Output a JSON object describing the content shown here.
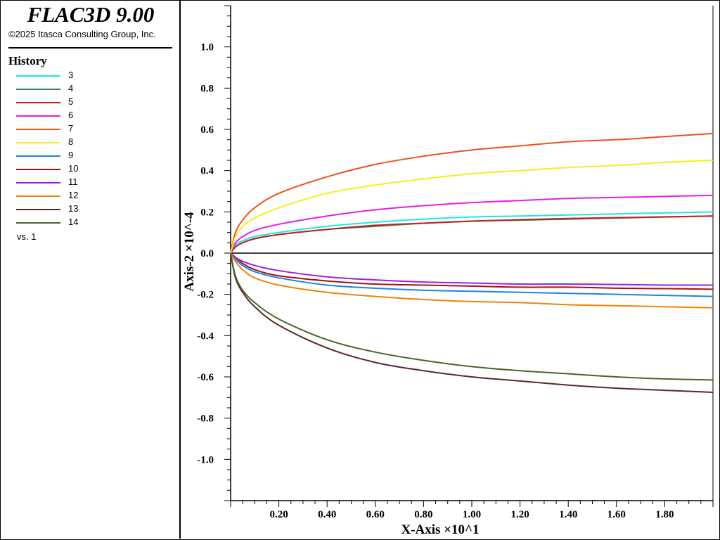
{
  "app": {
    "title": "FLAC3D 9.00",
    "copyright": "©2025 Itasca Consulting Group, Inc."
  },
  "legend": {
    "heading": "History",
    "items": [
      {
        "label": "3",
        "color": "#20e6e6"
      },
      {
        "label": "4",
        "color": "#2e8b57"
      },
      {
        "label": "5",
        "color": "#c81e1e"
      },
      {
        "label": "6",
        "color": "#e61ee6"
      },
      {
        "label": "7",
        "color": "#f0501e"
      },
      {
        "label": "8",
        "color": "#f0f01e"
      },
      {
        "label": "9",
        "color": "#1e82e6"
      },
      {
        "label": "10",
        "color": "#a01414"
      },
      {
        "label": "11",
        "color": "#a01ee6"
      },
      {
        "label": "12",
        "color": "#f0820a"
      },
      {
        "label": "13",
        "color": "#5a2828"
      },
      {
        "label": "14",
        "color": "#4b6428"
      }
    ],
    "vs": "vs. 1"
  },
  "chart_data": {
    "type": "line",
    "xlabel": "X-Axis ×10^1",
    "ylabel": "Axis-2 ×10^-4",
    "xlim": [
      0.0,
      2.0
    ],
    "ylim": [
      -1.2,
      1.2
    ],
    "xticks": [
      "0.20",
      "0.40",
      "0.60",
      "0.80",
      "1.00",
      "1.20",
      "1.40",
      "1.60",
      "1.80"
    ],
    "yticks": [
      "1.0",
      "0.8",
      "0.6",
      "0.4",
      "0.2",
      "0.0",
      "-0.2",
      "-0.4",
      "-0.6",
      "-0.8",
      "-1.0"
    ],
    "x": [
      0.0,
      0.02,
      0.05,
      0.1,
      0.2,
      0.4,
      0.6,
      0.8,
      1.0,
      1.2,
      1.4,
      1.6,
      1.8,
      2.0
    ],
    "series": [
      {
        "name": "3",
        "color": "#20e6e6",
        "values": [
          0.0,
          0.04,
          0.06,
          0.08,
          0.1,
          0.13,
          0.15,
          0.165,
          0.175,
          0.18,
          0.185,
          0.19,
          0.195,
          0.2
        ]
      },
      {
        "name": "4",
        "color": "#2e8b57",
        "values": [
          0.0,
          0.03,
          0.05,
          0.07,
          0.09,
          0.115,
          0.13,
          0.145,
          0.155,
          0.16,
          0.165,
          0.17,
          0.175,
          0.18
        ]
      },
      {
        "name": "5",
        "color": "#c81e1e",
        "values": [
          0.0,
          0.03,
          0.05,
          0.07,
          0.09,
          0.115,
          0.135,
          0.145,
          0.155,
          0.162,
          0.168,
          0.172,
          0.176,
          0.18
        ]
      },
      {
        "name": "6",
        "color": "#e61ee6",
        "values": [
          0.0,
          0.05,
          0.08,
          0.11,
          0.14,
          0.18,
          0.21,
          0.23,
          0.245,
          0.255,
          0.265,
          0.27,
          0.275,
          0.28
        ]
      },
      {
        "name": "7",
        "color": "#f0501e",
        "values": [
          0.0,
          0.1,
          0.16,
          0.22,
          0.29,
          0.37,
          0.43,
          0.47,
          0.5,
          0.52,
          0.54,
          0.55,
          0.565,
          0.58
        ]
      },
      {
        "name": "8",
        "color": "#f0f01e",
        "values": [
          0.0,
          0.08,
          0.13,
          0.17,
          0.22,
          0.29,
          0.33,
          0.36,
          0.385,
          0.4,
          0.415,
          0.425,
          0.44,
          0.45
        ]
      },
      {
        "name": "9",
        "color": "#1e82e6",
        "values": [
          0.0,
          -0.03,
          -0.06,
          -0.09,
          -0.12,
          -0.155,
          -0.17,
          -0.18,
          -0.185,
          -0.19,
          -0.195,
          -0.2,
          -0.205,
          -0.21
        ]
      },
      {
        "name": "10",
        "color": "#a01414",
        "values": [
          0.0,
          -0.02,
          -0.05,
          -0.08,
          -0.11,
          -0.135,
          -0.15,
          -0.155,
          -0.16,
          -0.165,
          -0.165,
          -0.17,
          -0.172,
          -0.175
        ]
      },
      {
        "name": "11",
        "color": "#a01ee6",
        "values": [
          0.0,
          -0.02,
          -0.04,
          -0.06,
          -0.085,
          -0.115,
          -0.13,
          -0.14,
          -0.145,
          -0.15,
          -0.15,
          -0.152,
          -0.155,
          -0.155
        ]
      },
      {
        "name": "12",
        "color": "#f0820a",
        "values": [
          0.0,
          -0.04,
          -0.08,
          -0.12,
          -0.155,
          -0.19,
          -0.21,
          -0.225,
          -0.235,
          -0.24,
          -0.25,
          -0.255,
          -0.26,
          -0.265
        ]
      },
      {
        "name": "13",
        "color": "#5a2828",
        "values": [
          0.0,
          -0.12,
          -0.19,
          -0.26,
          -0.35,
          -0.46,
          -0.53,
          -0.57,
          -0.6,
          -0.62,
          -0.64,
          -0.655,
          -0.665,
          -0.675
        ]
      },
      {
        "name": "14",
        "color": "#4b6428",
        "values": [
          0.0,
          -0.11,
          -0.18,
          -0.24,
          -0.32,
          -0.42,
          -0.48,
          -0.52,
          -0.55,
          -0.57,
          -0.585,
          -0.6,
          -0.61,
          -0.615
        ]
      }
    ]
  }
}
